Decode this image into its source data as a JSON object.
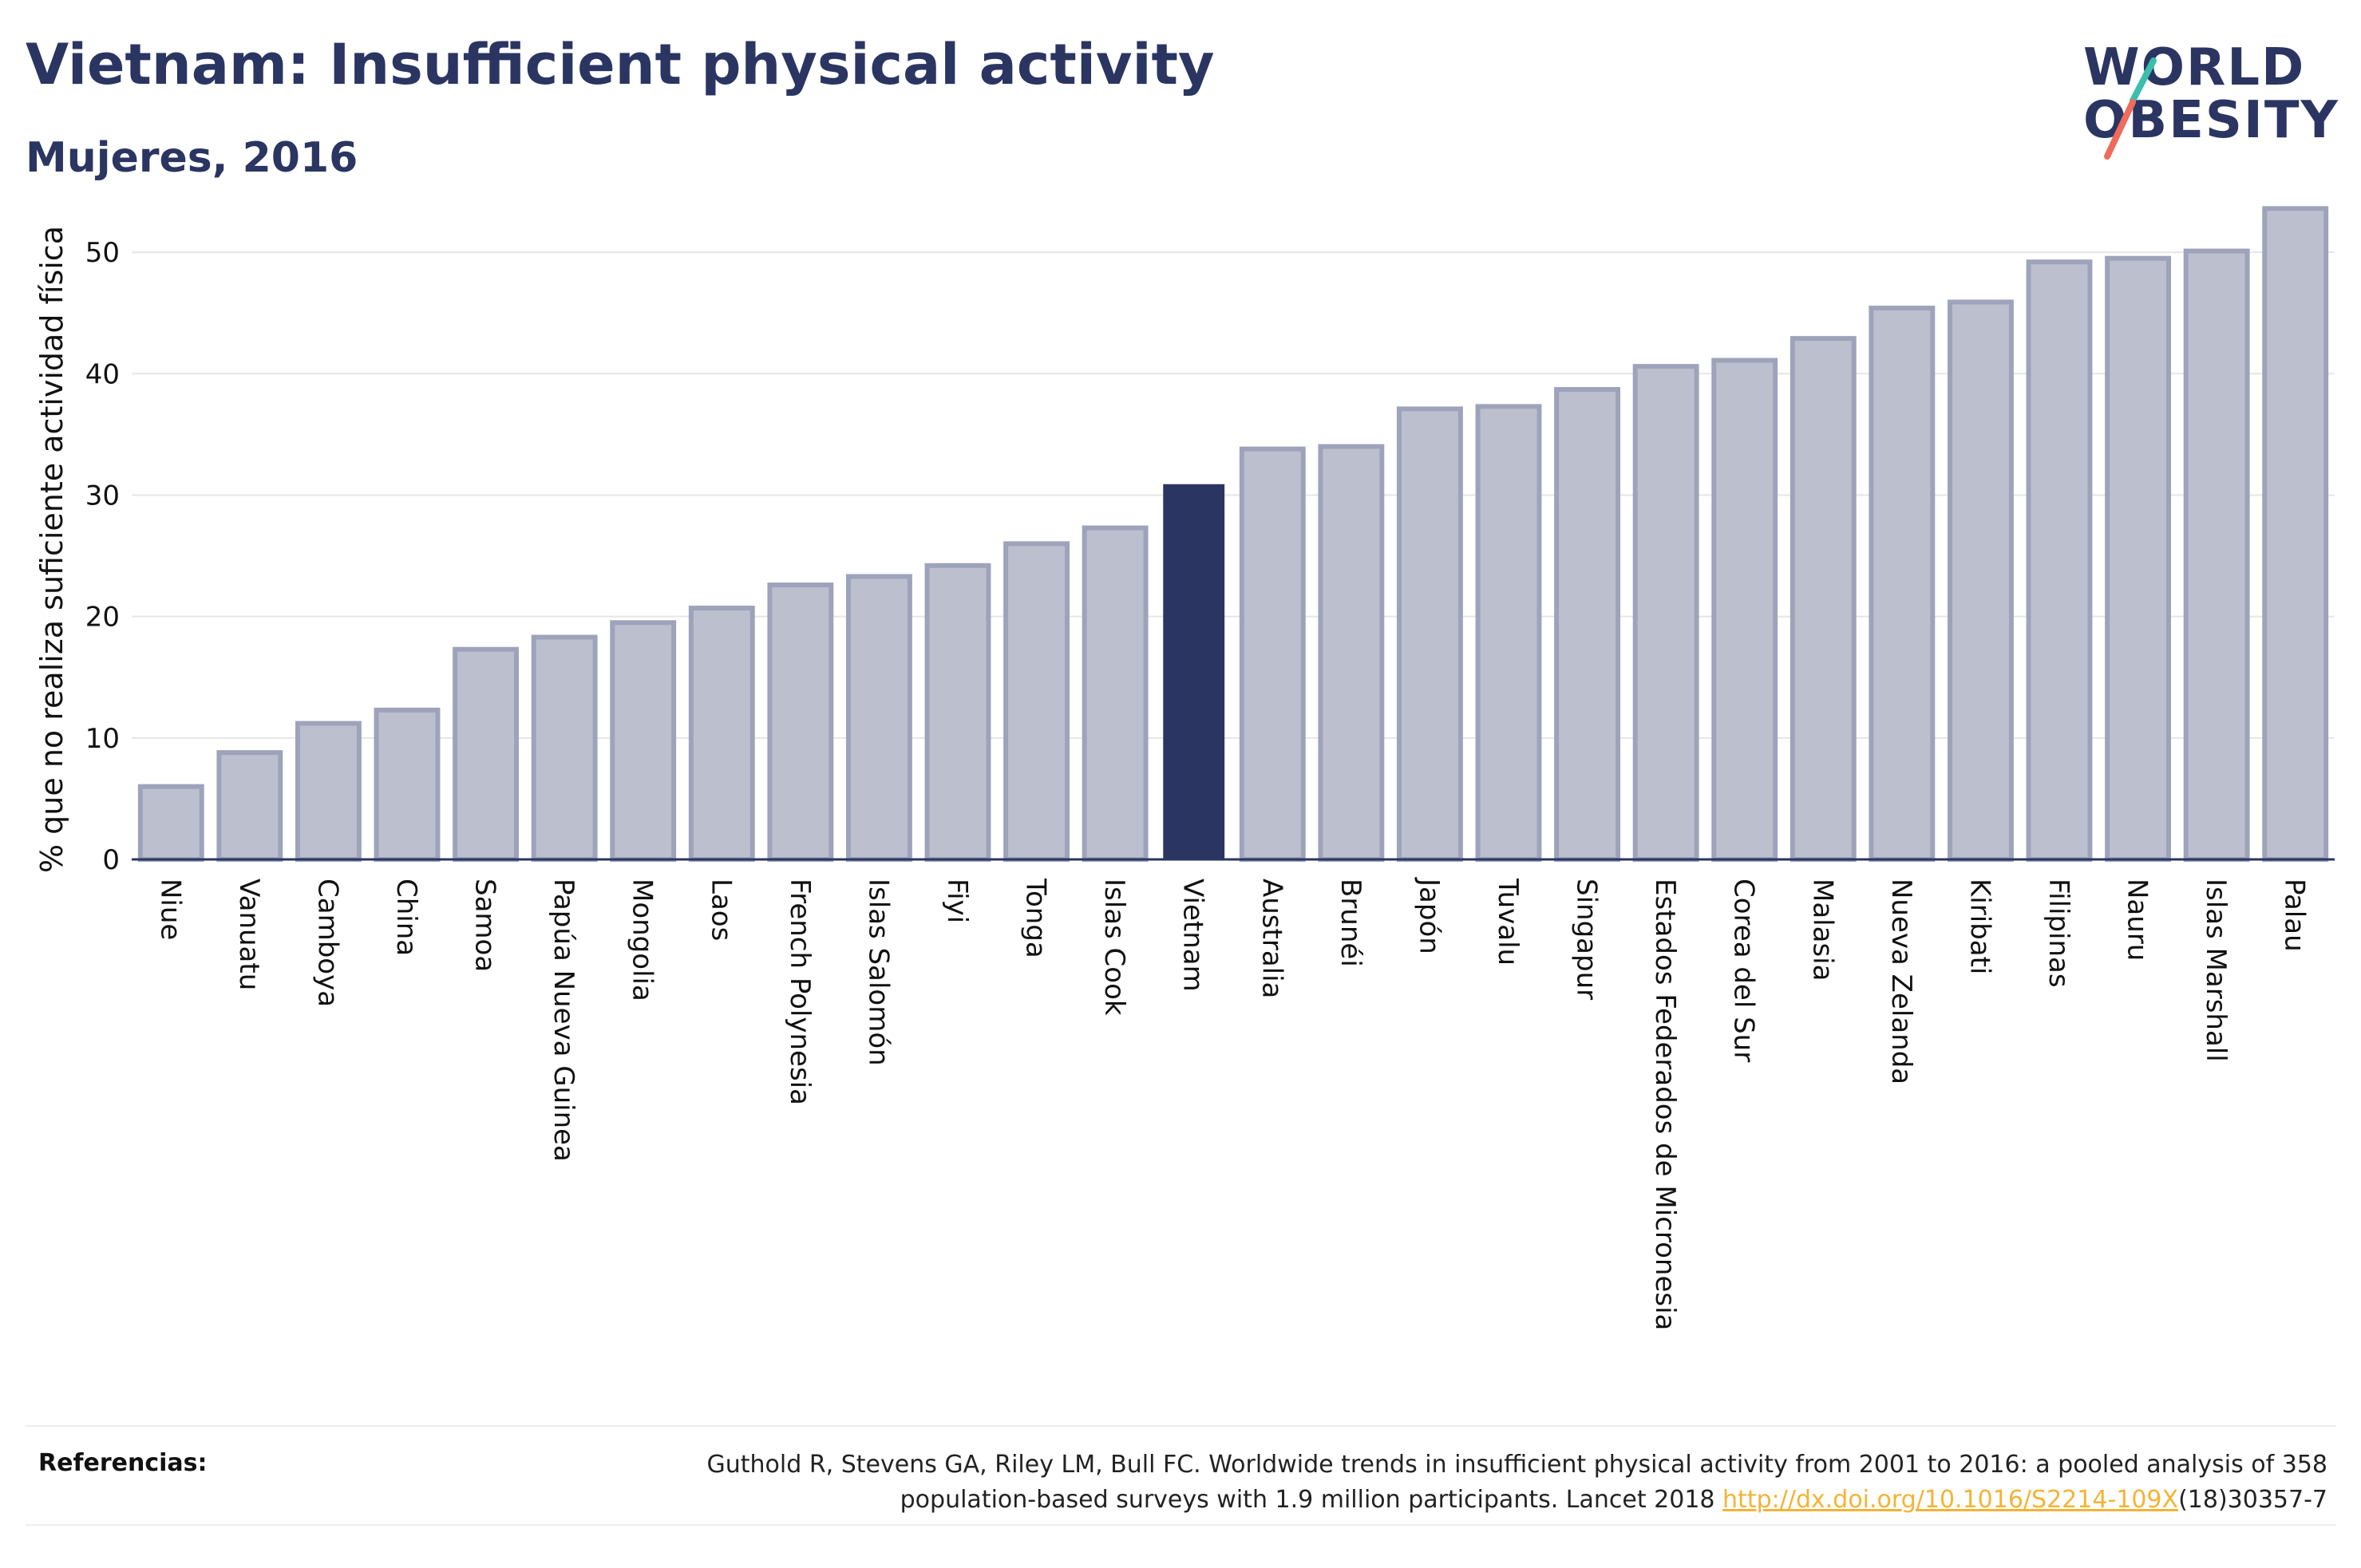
{
  "header": {
    "title": "Vietnam: Insufficient physical activity",
    "subtitle": "Mujeres, 2016"
  },
  "logo": {
    "line1": "WORLD",
    "line2": "OBESITY",
    "slash_colors": [
      "#3bbfad",
      "#ef6b5b"
    ]
  },
  "colors": {
    "bar": "#bcc0ce",
    "bar_border": "#9ea3bb",
    "highlight": "#2b3562",
    "grid": "#e6e6e6",
    "axis": "#2b3562"
  },
  "chart_data": {
    "type": "bar",
    "title": "Vietnam: Insufficient physical activity",
    "subtitle": "Mujeres, 2016",
    "xlabel": "",
    "ylabel": "% que no realiza suficiente actividad física",
    "ylim": [
      0,
      55
    ],
    "yticks": [
      0,
      10,
      20,
      30,
      40,
      50
    ],
    "grid": true,
    "highlight": "Vietnam",
    "categories": [
      "Niue",
      "Vanuatu",
      "Camboya",
      "China",
      "Samoa",
      "Papúa Nueva Guinea",
      "Mongolia",
      "Laos",
      "French Polynesia",
      "Islas Salomón",
      "Fiyi",
      "Tonga",
      "Islas Cook",
      "Vietnam",
      "Australia",
      "Brunéi",
      "Japón",
      "Tuvalu",
      "Singapur",
      "Estados Federados de Micronesia",
      "Corea del Sur",
      "Malasia",
      "Nueva Zelanda",
      "Kiribati",
      "Filipinas",
      "Nauru",
      "Islas Marshall",
      "Palau"
    ],
    "values": [
      6.0,
      8.8,
      11.2,
      12.3,
      17.3,
      18.3,
      19.5,
      20.7,
      22.6,
      23.3,
      24.2,
      26.0,
      27.3,
      30.9,
      33.8,
      34.0,
      37.1,
      37.3,
      38.7,
      40.6,
      41.1,
      42.9,
      45.4,
      45.9,
      49.2,
      49.5,
      50.1,
      53.6
    ]
  },
  "footer": {
    "references_label": "Referencias:",
    "reference_line1": "Guthold R, Stevens GA, Riley LM, Bull FC. Worldwide trends in insufficient physical activity from 2001 to 2016: a pooled analysis of 358",
    "reference_line2_prefix": "population-based surveys with 1.9 million participants. Lancet 2018 ",
    "reference_link": "http://dx.doi.org/10.1016/S2214-109X",
    "reference_line2_suffix": "(18)30357-7"
  }
}
